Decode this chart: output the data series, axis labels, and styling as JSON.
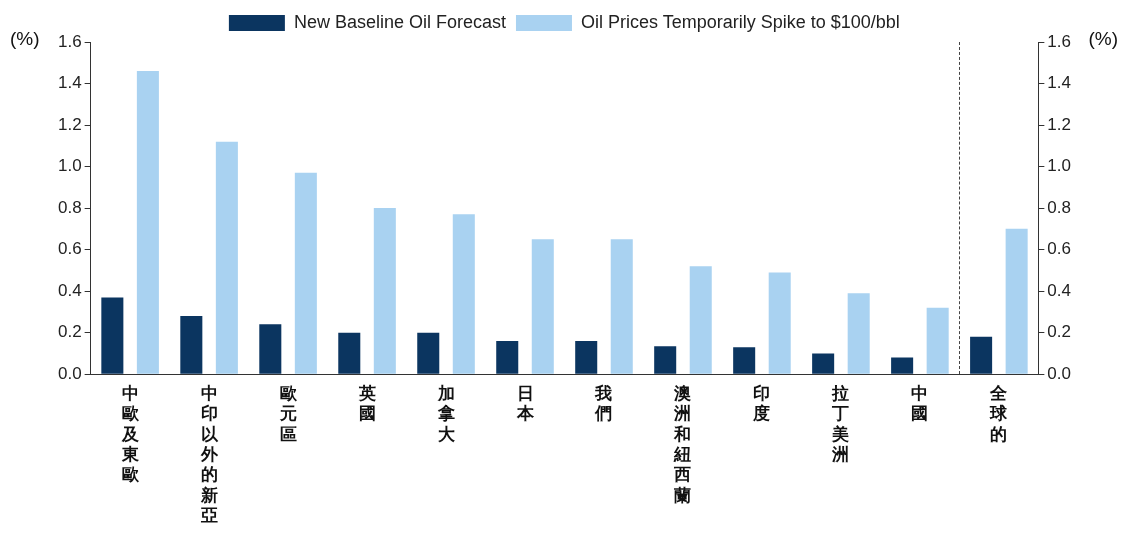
{
  "chart_data": {
    "type": "bar",
    "ylabel": "(%)",
    "y2label": "(%)",
    "categories": [
      "中歐及東歐",
      "中印以外的新亞",
      "歐元區",
      "英國",
      "加拿大",
      "日本",
      "我們",
      "澳洲和紐西蘭",
      "印度",
      "拉丁美洲",
      "中國",
      "全球的"
    ],
    "series": [
      {
        "name": "New Baseline Oil Forecast",
        "color": "#0b3560",
        "values": [
          0.37,
          0.28,
          0.24,
          0.2,
          0.2,
          0.16,
          0.16,
          0.135,
          0.13,
          0.1,
          0.08,
          0.18
        ]
      },
      {
        "name": "Oil Prices Temporarily Spike to $100/bbl",
        "color": "#a9d2f1",
        "values": [
          1.46,
          1.12,
          0.97,
          0.8,
          0.77,
          0.65,
          0.65,
          0.52,
          0.49,
          0.39,
          0.32,
          0.7
        ]
      }
    ],
    "ylim": [
      0,
      1.6
    ],
    "yticks": [
      {
        "value": 0,
        "label": "0.0"
      },
      {
        "value": 0.2,
        "label": "0.2"
      },
      {
        "value": 0.4,
        "label": "0.4"
      },
      {
        "value": 0.6,
        "label": "0.6"
      },
      {
        "value": 0.8,
        "label": "0.8"
      },
      {
        "value": 1,
        "label": "1.0"
      },
      {
        "value": 1.2,
        "label": "1.2"
      },
      {
        "value": 1.4,
        "label": "1.4"
      },
      {
        "value": 1.6,
        "label": "1.6"
      }
    ],
    "y2lim": [
      0,
      1.6
    ],
    "y2ticks": [
      {
        "value": 0,
        "label": "0.0"
      },
      {
        "value": 0.2,
        "label": "0.2"
      },
      {
        "value": 0.4,
        "label": "0.4"
      },
      {
        "value": 0.6,
        "label": "0.6"
      },
      {
        "value": 0.8,
        "label": "0.8"
      },
      {
        "value": 1,
        "label": "1.0"
      },
      {
        "value": 1.2,
        "label": "1.2"
      },
      {
        "value": 1.4,
        "label": "1.4"
      },
      {
        "value": 1.6,
        "label": "1.6"
      }
    ],
    "grid": false,
    "legend": "top"
  }
}
